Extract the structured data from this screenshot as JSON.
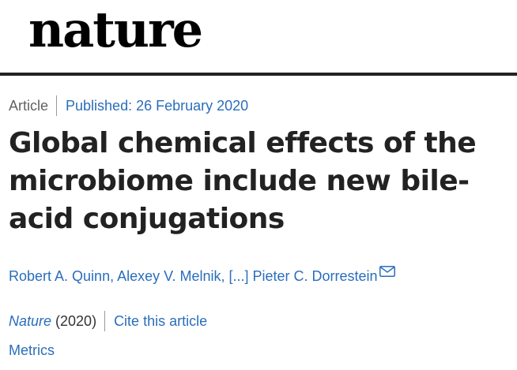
{
  "masthead": {
    "logo_text": "nature"
  },
  "article": {
    "type": "Article",
    "published": "Published: 26 February 2020",
    "title": "Global chemical effects of the microbiome include new bile-acid conjugations",
    "authors": "Robert A. Quinn, Alexey V. Melnik, [...] Pieter C. Dorrestein",
    "mail_icon": "envelope-icon",
    "journal": "Nature",
    "year": "(2020)",
    "cite_label": "Cite this article",
    "metrics_label": "Metrics"
  },
  "colors": {
    "link": "#2a6ebb",
    "text": "#222222",
    "muted": "#626262",
    "rule": "#222222"
  }
}
